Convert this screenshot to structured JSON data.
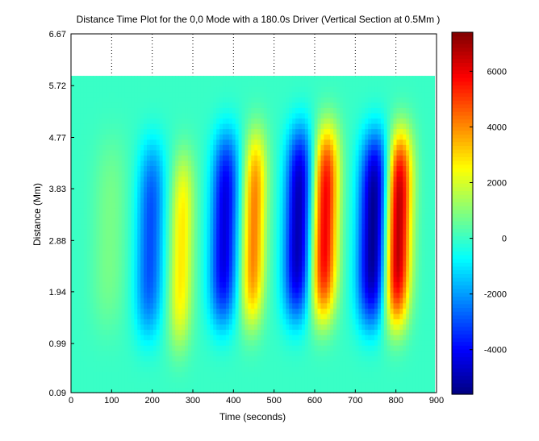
{
  "chart_data": {
    "type": "heatmap",
    "title": "Distance Time Plot for the 0,0 Mode with a 180.0s Driver (Vertical Section at 0.5Mm )",
    "xlabel": "Time (seconds)",
    "ylabel": "Distance (Mm)",
    "xlim": [
      0,
      900
    ],
    "ylim": [
      0.09,
      6.67
    ],
    "x_ticks": [
      "0",
      "100",
      "200",
      "300",
      "400",
      "500",
      "600",
      "700",
      "800",
      "900"
    ],
    "y_ticks": [
      "0.09",
      "0.99",
      "1.94",
      "2.88",
      "3.83",
      "4.77",
      "5.72",
      "6.67"
    ],
    "data_extent": {
      "x": [
        0,
        895
      ],
      "y": [
        0.09,
        5.9
      ]
    },
    "colorbar": {
      "range": [
        -5600,
        7400
      ],
      "ticks": [
        "-4000",
        "-2000",
        "0",
        "2000",
        "4000",
        "6000"
      ],
      "colormap": "jet"
    },
    "grid": "dotted vertical lines above data",
    "bands": [
      {
        "t": 95,
        "amp": 800,
        "width": 30,
        "peak_distance": 3.0
      },
      {
        "t": 195,
        "amp": -3000,
        "width": 24,
        "peak_distance": 2.9
      },
      {
        "t": 272,
        "amp": 2800,
        "width": 20,
        "peak_distance": 2.7
      },
      {
        "t": 378,
        "amp": -4400,
        "width": 24,
        "peak_distance": 3.1
      },
      {
        "t": 450,
        "amp": 4200,
        "width": 20,
        "peak_distance": 3.1
      },
      {
        "t": 560,
        "amp": -5000,
        "width": 24,
        "peak_distance": 3.2
      },
      {
        "t": 625,
        "amp": 6000,
        "width": 22,
        "peak_distance": 3.2
      },
      {
        "t": 745,
        "amp": -5500,
        "width": 26,
        "peak_distance": 3.1
      },
      {
        "t": 805,
        "amp": 7000,
        "width": 22,
        "peak_distance": 3.1
      }
    ]
  }
}
